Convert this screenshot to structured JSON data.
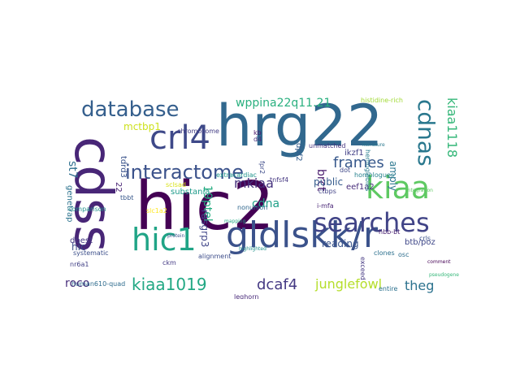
{
  "cloud": {
    "words": [
      {
        "text": "hic2",
        "color": "#440154"
      },
      {
        "text": "hrg22",
        "color": "#31688e"
      },
      {
        "text": "cdss",
        "color": "#482677"
      },
      {
        "text": "gldlskk/r",
        "color": "#3b528b"
      },
      {
        "text": "kiaa",
        "color": "#5ec962"
      },
      {
        "text": "hic1",
        "color": "#20a486"
      },
      {
        "text": "crl4",
        "color": "#3e4989"
      },
      {
        "text": "searches",
        "color": "#414487"
      },
      {
        "text": "interactome",
        "color": "#3b528b"
      },
      {
        "text": "database",
        "color": "#355f8d"
      },
      {
        "text": "cdnas",
        "color": "#2a788e"
      },
      {
        "text": "kiaa1019",
        "color": "#22a884"
      },
      {
        "text": "kiaa1118",
        "color": "#35b779"
      },
      {
        "text": "frames",
        "color": "#38598c"
      },
      {
        "text": "dcaf4",
        "color": "#443983"
      },
      {
        "text": "junglefowl",
        "color": "#b5de2b"
      },
      {
        "text": "theg",
        "color": "#2c728e"
      },
      {
        "text": "wppina22q11.21",
        "color": "#2ab07f"
      },
      {
        "text": "mkiaa",
        "color": "#46327e"
      },
      {
        "text": "cdna",
        "color": "#1fa088"
      },
      {
        "text": "brct",
        "color": "#481a6c"
      },
      {
        "text": "mctbp1",
        "color": "#cde11d"
      },
      {
        "text": "roco",
        "color": "#472d7b"
      },
      {
        "text": "19ptel",
        "color": "#27ad81"
      },
      {
        "text": "st7",
        "color": "#2e6f8e"
      },
      {
        "text": "public",
        "color": "#365c8d"
      },
      {
        "text": "substania",
        "color": "#1e9b8a"
      },
      {
        "text": "rasgrp3",
        "color": "#404588"
      },
      {
        "text": "reading",
        "color": "#3a548c"
      },
      {
        "text": "amply",
        "color": "#2a768e"
      },
      {
        "text": "tnfsf4",
        "color": "#453781"
      },
      {
        "text": "i-mfa",
        "color": "#482475"
      },
      {
        "text": "ikzf1",
        "color": "#424086"
      },
      {
        "text": "eef1a2",
        "color": "#472c7a"
      },
      {
        "text": "btb/poz",
        "color": "#3f4788"
      },
      {
        "text": "hbb-bt",
        "color": "#482071"
      },
      {
        "text": "hic",
        "color": "#3d4e8a"
      },
      {
        "text": "human610-quad",
        "color": "#2f6c8e"
      },
      {
        "text": "leghorn",
        "color": "#482979"
      },
      {
        "text": "entire",
        "color": "#2c718e"
      },
      {
        "text": "nonunion",
        "color": "#31678e"
      },
      {
        "text": "crls",
        "color": "#3b528b"
      },
      {
        "text": "clones",
        "color": "#2d708e"
      },
      {
        "text": "systematic",
        "color": "#3c4f8a"
      },
      {
        "text": "comparison",
        "color": "#21918c"
      },
      {
        "text": "extracardiac",
        "color": "#1f958b"
      },
      {
        "text": "ctbps",
        "color": "#414287"
      },
      {
        "text": "genetrap",
        "color": "#2c738e"
      },
      {
        "text": "dpf2",
        "color": "#355e8d"
      },
      {
        "text": "chromosome",
        "color": "#433d84"
      },
      {
        "text": "fpr2",
        "color": "#3e4c8a"
      },
      {
        "text": "exceed",
        "color": "#453882"
      },
      {
        "text": "alignment",
        "color": "#3d4d8a"
      },
      {
        "text": "unmatched",
        "color": "#46337f"
      },
      {
        "text": "dbest",
        "color": "#443a83"
      },
      {
        "text": "ckm",
        "color": "#443b84"
      },
      {
        "text": "osc",
        "color": "#2e6e8e"
      },
      {
        "text": "nr6a1",
        "color": "#424186"
      },
      {
        "text": "hemoglobins",
        "color": "#287d8e"
      },
      {
        "text": "histidine-rich",
        "color": "#a2da37"
      },
      {
        "text": "homologues",
        "color": "#26818e"
      },
      {
        "text": "tdrd3",
        "color": "#3a538b"
      },
      {
        "text": "kb",
        "color": "#481467"
      },
      {
        "text": "d4",
        "color": "#46307e"
      },
      {
        "text": "dot",
        "color": "#3f4889"
      },
      {
        "text": "22",
        "color": "#482374"
      },
      {
        "text": "tbbt",
        "color": "#38588c"
      },
      {
        "text": "sclsad",
        "color": "#d8e219"
      },
      {
        "text": "slc1a2",
        "color": "#fde725"
      },
      {
        "text": "literature",
        "color": "#2a788e"
      },
      {
        "text": "protein",
        "color": "#3b528b"
      },
      {
        "text": "highlighted",
        "color": "#21918c"
      },
      {
        "text": "integration",
        "color": "#5ec962"
      },
      {
        "text": "pseudogene",
        "color": "#35b779"
      },
      {
        "text": "comment",
        "color": "#440154"
      },
      {
        "text": "mapping",
        "color": "#22a884"
      }
    ]
  }
}
